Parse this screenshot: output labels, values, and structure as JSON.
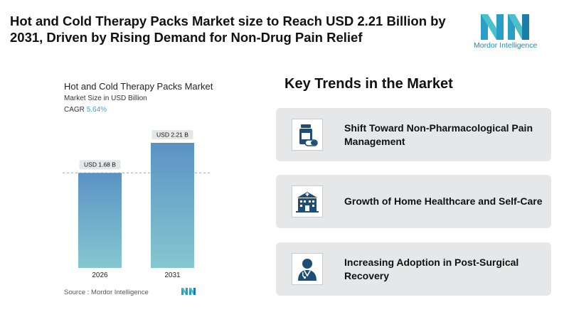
{
  "headline": "Hot and Cold Therapy Packs Market size to Reach USD 2.21 Billion by 2031, Driven by Rising Demand for Non-Drug Pain Relief",
  "brand": {
    "name": "Mordor Intelligence",
    "color": "#1e8fb3"
  },
  "chart_data": {
    "type": "bar",
    "title": "Hot and Cold Therapy Packs Market",
    "subtitle": "Market Size in USD Billion",
    "cagr_label": "CAGR",
    "cagr_value": "5.64%",
    "categories": [
      "2026",
      "2031"
    ],
    "values": [
      1.68,
      2.21
    ],
    "data_labels": [
      "USD 1.68 B",
      "USD 2.21 B"
    ],
    "ylim": [
      0,
      2.21
    ],
    "grid": false,
    "reference_line_at": 1.68,
    "bar_gradient": [
      "#5a93c4",
      "#86c7cf"
    ]
  },
  "source": {
    "label": "Source :",
    "name": "Mordor Intelligence"
  },
  "trends": {
    "title": "Key Trends in the Market",
    "items": [
      {
        "label": "Shift Toward Non-Pharmacological Pain Management",
        "icon": "medicine-bottle-icon"
      },
      {
        "label": "Growth of Home Healthcare and Self-Care",
        "icon": "hospital-building-icon"
      },
      {
        "label": "Increasing Adoption in Post-Surgical Recovery",
        "icon": "doctor-icon"
      }
    ]
  }
}
